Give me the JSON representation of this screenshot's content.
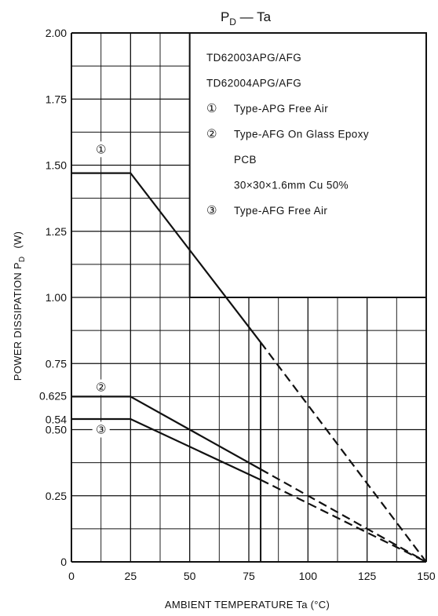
{
  "chart_data": {
    "type": "line",
    "title_main": "P",
    "title_sub": "D",
    "title_rest": " — Ta",
    "xlabel": "AMBIENT TEMPERATURE   Ta   (°C)",
    "ylabel_main": "POWER DISSIPATION   P",
    "ylabel_sub": "D",
    "ylabel_unit": "(W)",
    "xlim": [
      0,
      150
    ],
    "ylim": [
      0,
      2.0
    ],
    "x_ticks": [
      "0",
      "25",
      "50",
      "75",
      "100",
      "125",
      "150"
    ],
    "y_ticks": [
      {
        "value": 0,
        "label": "0"
      },
      {
        "value": 0.25,
        "label": "0.25"
      },
      {
        "value": 0.5,
        "label": "0.50"
      },
      {
        "value": 0.54,
        "label": "0.54"
      },
      {
        "value": 0.625,
        "label": "0.625"
      },
      {
        "value": 0.75,
        "label": "0.75"
      },
      {
        "value": 1.0,
        "label": "1.00"
      },
      {
        "value": 1.25,
        "label": "1.25"
      },
      {
        "value": 1.5,
        "label": "1.50"
      },
      {
        "value": 1.75,
        "label": "1.75"
      },
      {
        "value": 2.0,
        "label": "2.00"
      }
    ],
    "grid": true,
    "series": [
      {
        "marker": "①",
        "solid": [
          [
            0,
            1.47
          ],
          [
            25,
            1.47
          ],
          [
            80,
            0.83
          ]
        ],
        "dashed": [
          [
            80,
            0.83
          ],
          [
            150,
            0
          ]
        ]
      },
      {
        "marker": "②",
        "solid": [
          [
            0,
            0.625
          ],
          [
            25,
            0.625
          ],
          [
            80,
            0.35
          ]
        ],
        "dashed": [
          [
            80,
            0.35
          ],
          [
            150,
            0
          ]
        ]
      },
      {
        "marker": "③",
        "solid": [
          [
            0,
            0.54
          ],
          [
            25,
            0.54
          ],
          [
            80,
            0.31
          ]
        ],
        "dashed": [
          [
            80,
            0.31
          ],
          [
            150,
            0
          ]
        ]
      }
    ],
    "legend": {
      "placement": "top-right",
      "lines": [
        {
          "marker": "",
          "text": "TD62003APG/AFG"
        },
        {
          "marker": "",
          "text": "TD62004APG/AFG"
        },
        {
          "marker": "①",
          "text": "Type-APG Free Air"
        },
        {
          "marker": "②",
          "text": "Type-AFG On Glass Epoxy"
        },
        {
          "marker": "",
          "text": "PCB"
        },
        {
          "marker": "",
          "text": "30×30×1.6mm Cu 50%"
        },
        {
          "marker": "③",
          "text": "Type-AFG Free Air"
        }
      ]
    }
  }
}
